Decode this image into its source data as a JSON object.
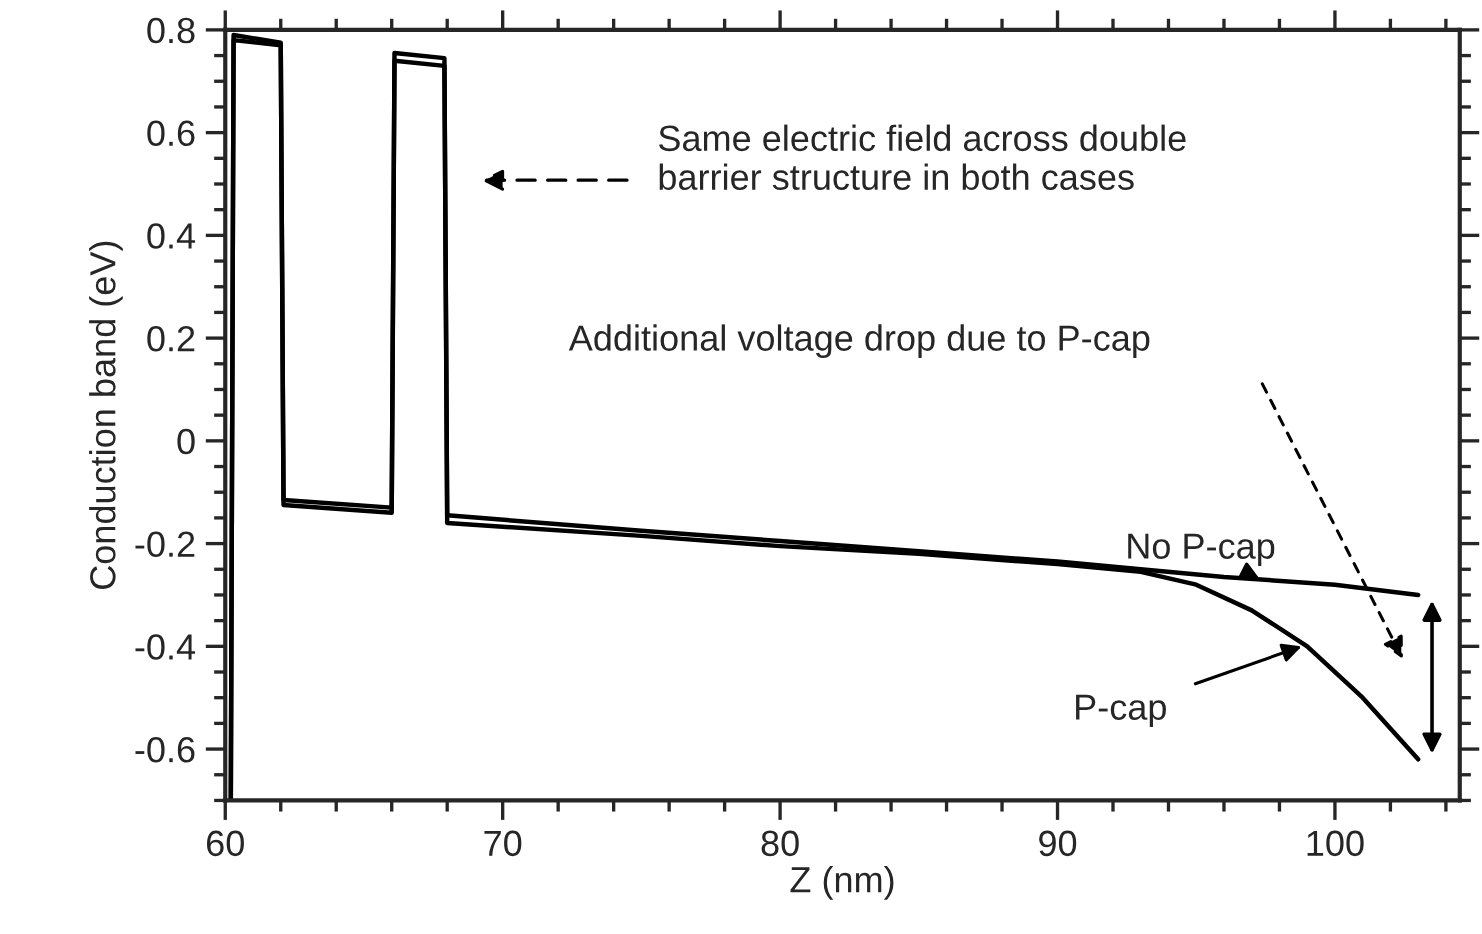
{
  "chart_data": {
    "type": "line",
    "xlabel": "Z (nm)",
    "ylabel": "Conduction band (eV)",
    "xlim": [
      60,
      104.5
    ],
    "ylim": [
      -0.7,
      0.8
    ],
    "xticks": [
      60,
      70,
      80,
      90,
      100
    ],
    "yticks": [
      {
        "value": -0.6,
        "label": "-0.6"
      },
      {
        "value": -0.4,
        "label": "-0.4"
      },
      {
        "value": -0.2,
        "label": "-0.2"
      },
      0,
      0.2,
      0.4,
      0.6,
      0.8
    ],
    "grid": false,
    "legend": false,
    "marker": "none",
    "line_style": "solid",
    "series": [
      {
        "color": "#000000",
        "x": [
          60.2,
          60.3,
          62.0,
          62.1,
          66.0,
          66.1,
          67.9,
          68.0,
          75,
          80,
          85,
          90,
          93,
          96,
          100,
          103
        ],
        "values": [
          -0.7,
          0.79,
          0.775,
          -0.115,
          -0.13,
          0.755,
          0.745,
          -0.145,
          -0.175,
          -0.195,
          -0.215,
          -0.235,
          -0.25,
          -0.265,
          -0.28,
          -0.3
        ]
      },
      {
        "color": "#000000",
        "x": [
          60.2,
          60.3,
          62.0,
          62.1,
          66.0,
          66.1,
          67.9,
          68.0,
          75,
          80,
          85,
          90,
          93,
          95,
          97,
          99,
          101,
          103
        ],
        "values": [
          -0.7,
          0.78,
          0.77,
          -0.125,
          -0.14,
          0.74,
          0.73,
          -0.16,
          -0.185,
          -0.205,
          -0.22,
          -0.24,
          -0.255,
          -0.28,
          -0.33,
          -0.4,
          -0.5,
          -0.62
        ]
      }
    ],
    "annotations": [
      "Same electric field across double\nbarrier structure in both cases",
      "Additional voltage drop due to P-cap",
      {
        "text": "No P-cap",
        "x": 97.3,
        "y": -0.27
      },
      {
        "text": "P-cap",
        "x": 98.8,
        "y": -0.4
      }
    ]
  }
}
